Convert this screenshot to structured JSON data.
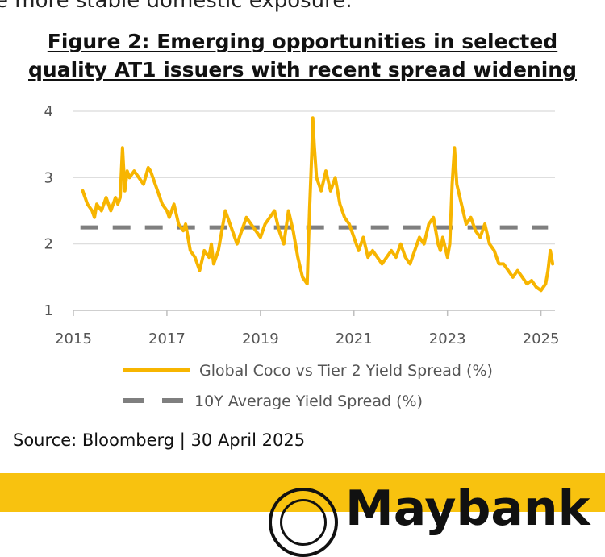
{
  "page": {
    "top_text": "e more stable domestic exposure.",
    "title_line1": "Figure 2:  Emerging opportunities in selected",
    "title_line2": "quality AT1 issuers with recent spread widening",
    "source": "Source: Bloomberg | 30 April 2025",
    "logo_text": "Maybank"
  },
  "colors": {
    "series": "#f7b500",
    "average": "#7f7f7f",
    "grid": "#d9d9d9",
    "banner": "#f8c20f"
  },
  "chart_data": {
    "type": "line",
    "title": "",
    "xlabel": "",
    "ylabel": "",
    "xlim": [
      2015,
      2025.3
    ],
    "ylim": [
      1,
      4
    ],
    "yticks": [
      "1",
      "2",
      "3",
      "4"
    ],
    "xticks": [
      "2015",
      "2017",
      "2019",
      "2021",
      "2023",
      "2025"
    ],
    "grid": true,
    "legend_position": "bottom",
    "series": [
      {
        "name": "Global Coco vs Tier 2 Yield Spread (%)",
        "x": [
          2015.2,
          2015.25,
          2015.3,
          2015.4,
          2015.45,
          2015.5,
          2015.6,
          2015.7,
          2015.8,
          2015.9,
          2015.95,
          2016.0,
          2016.05,
          2016.1,
          2016.15,
          2016.2,
          2016.3,
          2016.4,
          2016.5,
          2016.6,
          2016.65,
          2016.7,
          2016.8,
          2016.9,
          2017.0,
          2017.05,
          2017.15,
          2017.25,
          2017.35,
          2017.4,
          2017.5,
          2017.6,
          2017.7,
          2017.8,
          2017.9,
          2017.95,
          2018.0,
          2018.1,
          2018.15,
          2018.25,
          2018.35,
          2018.4,
          2018.5,
          2018.6,
          2018.7,
          2018.8,
          2018.9,
          2019.0,
          2019.1,
          2019.2,
          2019.3,
          2019.4,
          2019.5,
          2019.6,
          2019.7,
          2019.8,
          2019.9,
          2020.0,
          2020.05,
          2020.1,
          2020.12,
          2020.15,
          2020.18,
          2020.2,
          2020.3,
          2020.4,
          2020.5,
          2020.6,
          2020.7,
          2020.8,
          2020.9,
          2021.0,
          2021.1,
          2021.2,
          2021.3,
          2021.4,
          2021.5,
          2021.6,
          2021.7,
          2021.8,
          2021.9,
          2022.0,
          2022.1,
          2022.2,
          2022.3,
          2022.4,
          2022.5,
          2022.6,
          2022.7,
          2022.8,
          2022.85,
          2022.9,
          2023.0,
          2023.05,
          2023.1,
          2023.15,
          2023.2,
          2023.3,
          2023.4,
          2023.5,
          2023.6,
          2023.7,
          2023.8,
          2023.9,
          2024.0,
          2024.1,
          2024.2,
          2024.3,
          2024.4,
          2024.5,
          2024.6,
          2024.7,
          2024.8,
          2024.9,
          2025.0,
          2025.1,
          2025.15,
          2025.2,
          2025.25
        ],
        "values": [
          2.8,
          2.7,
          2.6,
          2.5,
          2.4,
          2.6,
          2.5,
          2.7,
          2.5,
          2.7,
          2.6,
          2.7,
          3.45,
          2.8,
          3.1,
          3.0,
          3.1,
          3.0,
          2.9,
          3.15,
          3.1,
          3.0,
          2.8,
          2.6,
          2.5,
          2.4,
          2.6,
          2.3,
          2.2,
          2.3,
          1.9,
          1.8,
          1.6,
          1.9,
          1.8,
          2.0,
          1.7,
          1.9,
          2.1,
          2.5,
          2.3,
          2.2,
          2.0,
          2.2,
          2.4,
          2.3,
          2.2,
          2.1,
          2.3,
          2.4,
          2.5,
          2.2,
          2.0,
          2.5,
          2.2,
          1.8,
          1.5,
          1.4,
          2.5,
          3.4,
          3.9,
          3.5,
          3.2,
          3.0,
          2.8,
          3.1,
          2.8,
          3.0,
          2.6,
          2.4,
          2.3,
          2.1,
          1.9,
          2.1,
          1.8,
          1.9,
          1.8,
          1.7,
          1.8,
          1.9,
          1.8,
          2.0,
          1.8,
          1.7,
          1.9,
          2.1,
          2.0,
          2.3,
          2.4,
          2.0,
          1.9,
          2.1,
          1.8,
          2.0,
          2.9,
          3.45,
          2.9,
          2.6,
          2.3,
          2.4,
          2.2,
          2.1,
          2.3,
          2.0,
          1.9,
          1.7,
          1.7,
          1.6,
          1.5,
          1.6,
          1.5,
          1.4,
          1.45,
          1.35,
          1.3,
          1.4,
          1.6,
          1.9,
          1.7
        ]
      },
      {
        "name": "10Y Average Yield Spread (%)",
        "x": [
          2015.15,
          2025.15
        ],
        "values": [
          2.25,
          2.25
        ]
      }
    ]
  }
}
